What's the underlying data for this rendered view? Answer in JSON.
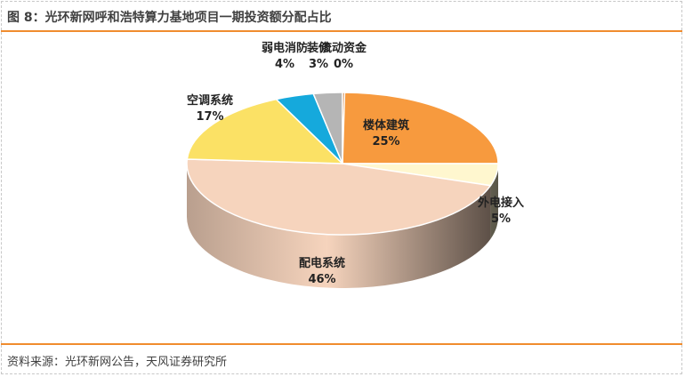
{
  "title": "图 8：光环新网呼和浩特算力基地项目一期投资额分配占比",
  "source": "资料来源：光环新网公告，天风证券研究所",
  "chart_data": {
    "type": "pie",
    "style": "3d",
    "slices": [
      {
        "label": "楼体建筑",
        "value": 25,
        "value_label": "25%",
        "color": "#f79a3e"
      },
      {
        "label": "外电接入",
        "value": 5,
        "value_label": "5%",
        "color": "#fff7cf"
      },
      {
        "label": "配电系统",
        "value": 46,
        "value_label": "46%",
        "color": "#f6d4bd"
      },
      {
        "label": "空调系统",
        "value": 17,
        "value_label": "17%",
        "color": "#fbe165"
      },
      {
        "label": "弱电消防",
        "value": 4,
        "value_label": "4%",
        "color": "#15a9dc"
      },
      {
        "label": "装修",
        "value": 3,
        "value_label": "3%",
        "color": "#b5b5b5"
      },
      {
        "label": "流动资金",
        "value": 0,
        "value_label": "0%",
        "color": "#c87a3a"
      }
    ]
  }
}
